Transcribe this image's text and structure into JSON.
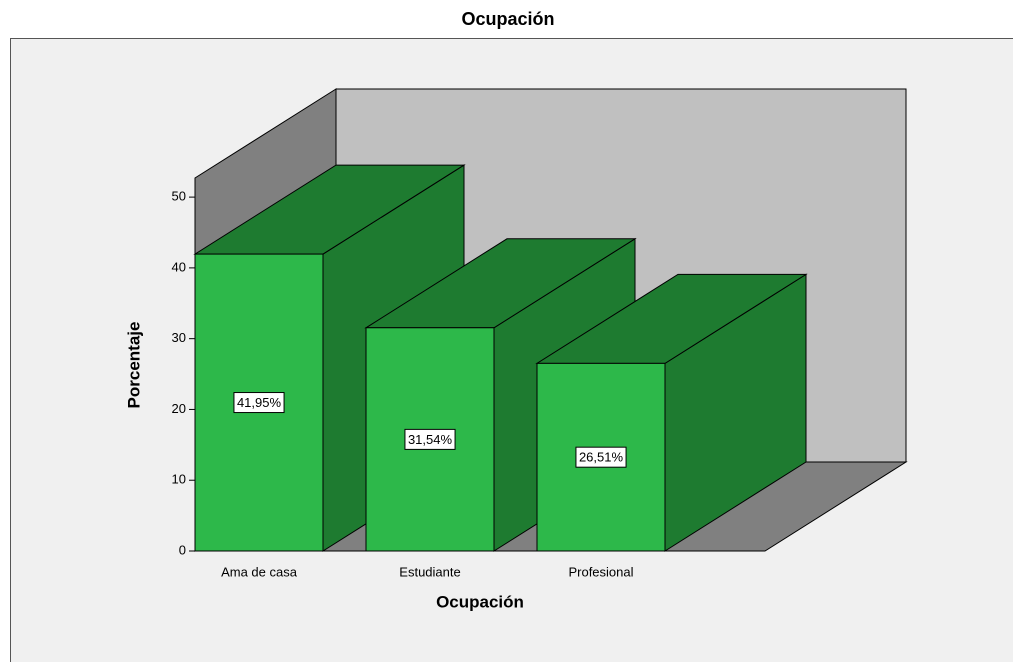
{
  "chart_data": {
    "type": "bar3d",
    "title": "Ocupación",
    "xlabel": "Ocupación",
    "ylabel": "Porcentaje",
    "categories": [
      "Ama de casa",
      "Estudiante",
      "Profesional"
    ],
    "values": [
      41.95,
      31.54,
      26.51
    ],
    "value_labels": [
      "41,95%",
      "31,54%",
      "26,51%"
    ],
    "color": "#2db84a",
    "ylim": [
      0,
      52.7
    ],
    "yticks": [
      0,
      10,
      20,
      30,
      40,
      50
    ]
  }
}
